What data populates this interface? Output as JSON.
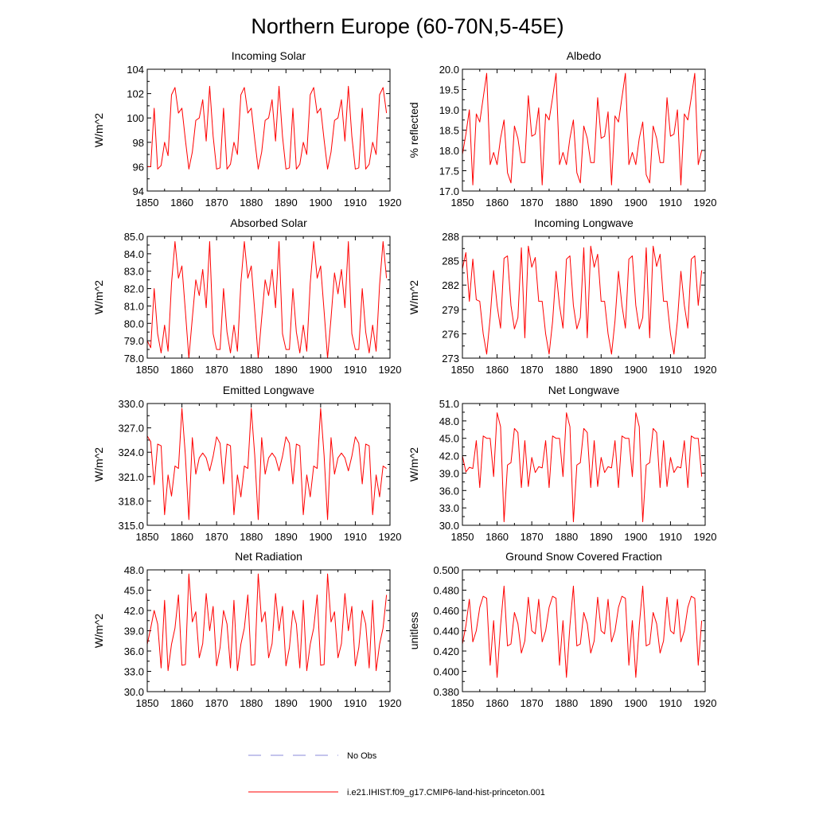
{
  "title": "Northern Europe (60-70N,5-45E)",
  "legend": {
    "no_obs_label": "No Obs",
    "no_obs_color": "#8a8ad8",
    "model_label": "i.e21.IHIST.f09_g17.CMIP6-land-hist-princeton.001",
    "model_color": "#ff0000"
  },
  "chart_data": [
    {
      "type": "line",
      "title": "Incoming Solar",
      "ylabel": "W/m^2",
      "xlim": [
        1850,
        1920
      ],
      "ylim": [
        94,
        104
      ],
      "xticks": [
        "1850",
        "1860",
        "1870",
        "1880",
        "1890",
        "1900",
        "1910",
        "1920"
      ],
      "yticks": [
        "94",
        "96",
        "98",
        "100",
        "102",
        "104"
      ],
      "x_start": 1850,
      "values": [
        96,
        96,
        100.8,
        95.8,
        96.1,
        98,
        96.9,
        101.9,
        102.5,
        100.4,
        100.8,
        98.2,
        95.8,
        97.2,
        99.8,
        100,
        101.5,
        98.1,
        102.6,
        98.5,
        95.8,
        95.9,
        100.8,
        95.8,
        96.2,
        98,
        97,
        101.9,
        102.5,
        100.4,
        100.8,
        98.2,
        95.8,
        97.2,
        99.8,
        100,
        101.5,
        98.1,
        102.6,
        98.5,
        95.8,
        95.9,
        100.8,
        95.8,
        96.2,
        98,
        97,
        101.9,
        102.5,
        100.4,
        100.8,
        98.2,
        95.8,
        97.2,
        99.8,
        100,
        101.5,
        98.1,
        102.6,
        98.5,
        95.8,
        95.9,
        100.8,
        95.8,
        96.2,
        98,
        97,
        101.9,
        102.5,
        100.4
      ]
    },
    {
      "type": "line",
      "title": "Albedo",
      "ylabel": "% reflected",
      "xlim": [
        1850,
        1920
      ],
      "ylim": [
        17.0,
        20.0
      ],
      "xticks": [
        "1850",
        "1860",
        "1870",
        "1880",
        "1890",
        "1900",
        "1910",
        "1920"
      ],
      "yticks": [
        "17.0",
        "17.5",
        "18.0",
        "18.5",
        "19.0",
        "19.5",
        "20.0"
      ],
      "x_start": 1850,
      "values": [
        17.9,
        18.4,
        19.0,
        17.15,
        18.9,
        18.7,
        19.3,
        19.9,
        17.65,
        17.95,
        17.65,
        18.3,
        18.75,
        17.45,
        17.2,
        18.6,
        18.3,
        17.7,
        17.7,
        19.35,
        18.35,
        18.4,
        19.05,
        17.15,
        18.9,
        18.75,
        19.3,
        19.9,
        17.65,
        17.95,
        17.65,
        18.3,
        18.75,
        17.45,
        17.2,
        18.6,
        18.3,
        17.7,
        17.7,
        19.3,
        18.3,
        18.35,
        18.95,
        17.15,
        18.85,
        18.7,
        19.3,
        19.9,
        17.65,
        17.95,
        17.65,
        18.3,
        18.7,
        17.4,
        17.2,
        18.6,
        18.3,
        17.7,
        17.7,
        19.3,
        18.35,
        18.4,
        19.0,
        17.15,
        18.9,
        18.75,
        19.3,
        19.9,
        17.65,
        18.0
      ]
    },
    {
      "type": "line",
      "title": "Absorbed Solar",
      "ylabel": "W/m^2",
      "xlim": [
        1850,
        1920
      ],
      "ylim": [
        78.0,
        85.0
      ],
      "xticks": [
        "1850",
        "1860",
        "1870",
        "1880",
        "1890",
        "1900",
        "1910",
        "1920"
      ],
      "yticks": [
        "78.0",
        "79.0",
        "80.0",
        "81.0",
        "82.0",
        "83.0",
        "84.0",
        "85.0"
      ],
      "x_start": 1850,
      "values": [
        79.0,
        78.6,
        82.0,
        79.4,
        78.3,
        79.9,
        78.4,
        82.3,
        84.7,
        82.6,
        83.3,
        80.7,
        78.0,
        80.3,
        82.5,
        81.6,
        83.1,
        80.9,
        84.7,
        79.4,
        78.5,
        78.5,
        82.0,
        79.5,
        78.3,
        79.9,
        78.4,
        82.3,
        84.7,
        82.6,
        83.3,
        80.7,
        78.0,
        80.3,
        82.5,
        81.6,
        83.1,
        80.9,
        84.7,
        79.4,
        78.5,
        78.5,
        82.0,
        79.5,
        78.3,
        79.9,
        78.4,
        82.3,
        84.7,
        82.6,
        83.3,
        80.7,
        78.0,
        80.3,
        82.9,
        81.7,
        83.1,
        80.9,
        84.7,
        79.4,
        78.5,
        78.5,
        82.0,
        79.5,
        78.3,
        79.9,
        78.4,
        82.2,
        84.7,
        82.6
      ]
    },
    {
      "type": "line",
      "title": "Incoming Longwave",
      "ylabel": "W/m^2",
      "xlim": [
        1850,
        1920
      ],
      "ylim": [
        273,
        288
      ],
      "xticks": [
        "1850",
        "1860",
        "1870",
        "1880",
        "1890",
        "1900",
        "1910",
        "1920"
      ],
      "yticks": [
        "273",
        "276",
        "279",
        "282",
        "285",
        "288"
      ],
      "x_start": 1850,
      "values": [
        284.0,
        286.0,
        280.0,
        285.2,
        280.2,
        280.0,
        276.0,
        273.5,
        278.0,
        283.8,
        279.5,
        276.7,
        285.3,
        285.6,
        279.5,
        276.6,
        278.0,
        286.6,
        275.5,
        286.8,
        284.2,
        285.4,
        280.0,
        280.0,
        276.0,
        273.5,
        277.5,
        283.7,
        279.5,
        276.7,
        285.2,
        285.6,
        279.5,
        276.6,
        278.0,
        286.6,
        275.5,
        286.8,
        284.2,
        285.8,
        280.0,
        280.0,
        276.0,
        273.5,
        277.6,
        283.7,
        279.5,
        276.7,
        285.2,
        285.6,
        279.5,
        276.6,
        278.0,
        286.6,
        275.5,
        286.8,
        284.3,
        285.8,
        280.0,
        280.0,
        276.0,
        273.5,
        277.6,
        283.7,
        279.5,
        276.7,
        285.2,
        285.6,
        279.5,
        283.8
      ]
    },
    {
      "type": "line",
      "title": "Emitted Longwave",
      "ylabel": "W/m^2",
      "xlim": [
        1850,
        1920
      ],
      "ylim": [
        315.0,
        330.0
      ],
      "xticks": [
        "1850",
        "1860",
        "1870",
        "1880",
        "1890",
        "1900",
        "1910",
        "1920"
      ],
      "yticks": [
        "315.0",
        "318.0",
        "321.0",
        "324.0",
        "327.0",
        "330.0"
      ],
      "x_start": 1850,
      "values": [
        326.0,
        325.3,
        320.0,
        325.0,
        324.8,
        316.3,
        321.2,
        318.6,
        322.3,
        322.0,
        329.4,
        323.6,
        315.7,
        325.8,
        321.3,
        323.3,
        323.9,
        323.3,
        321.7,
        323.5,
        325.9,
        325.1,
        320.1,
        325.0,
        324.8,
        316.3,
        321.2,
        318.5,
        322.3,
        322.0,
        329.4,
        323.6,
        315.7,
        325.8,
        321.3,
        323.3,
        323.9,
        323.3,
        321.7,
        323.5,
        325.9,
        325.1,
        320.1,
        325.0,
        324.8,
        316.3,
        321.2,
        318.5,
        322.3,
        322.0,
        329.4,
        323.6,
        315.7,
        325.8,
        321.3,
        323.3,
        323.9,
        323.3,
        321.7,
        323.5,
        325.9,
        325.1,
        320.1,
        325.0,
        324.8,
        316.3,
        321.2,
        318.5,
        322.3,
        322.0
      ]
    },
    {
      "type": "line",
      "title": "Net Longwave",
      "ylabel": "W/m^2",
      "xlim": [
        1850,
        1920
      ],
      "ylim": [
        30.0,
        51.0
      ],
      "xticks": [
        "1850",
        "1860",
        "1870",
        "1880",
        "1890",
        "1900",
        "1910",
        "1920"
      ],
      "yticks": [
        "30.0",
        "33.0",
        "36.0",
        "39.0",
        "42.0",
        "45.0",
        "48.0",
        "51.0"
      ],
      "x_start": 1850,
      "values": [
        42.0,
        39.2,
        40.0,
        39.8,
        44.6,
        36.5,
        45.4,
        45.0,
        45.0,
        38.4,
        49.4,
        47.0,
        30.6,
        40.4,
        40.8,
        46.7,
        46.0,
        36.5,
        44.6,
        36.7,
        41.7,
        39.1,
        40.1,
        39.9,
        44.6,
        36.5,
        45.4,
        45.0,
        45.0,
        38.4,
        49.4,
        47.0,
        30.6,
        40.4,
        40.8,
        46.7,
        46.0,
        36.5,
        44.6,
        36.7,
        41.7,
        39.1,
        40.1,
        39.9,
        44.6,
        36.5,
        45.4,
        45.0,
        45.0,
        38.4,
        49.4,
        47.0,
        30.6,
        40.4,
        40.8,
        46.7,
        46.0,
        36.5,
        44.6,
        36.7,
        41.7,
        39.1,
        40.1,
        39.9,
        44.6,
        36.5,
        45.4,
        45.0,
        45.0,
        38.4
      ]
    },
    {
      "type": "line",
      "title": "Net Radiation",
      "ylabel": "W/m^2",
      "xlim": [
        1850,
        1920
      ],
      "ylim": [
        30.0,
        48.0
      ],
      "xticks": [
        "1850",
        "1860",
        "1870",
        "1880",
        "1890",
        "1900",
        "1910",
        "1920"
      ],
      "yticks": [
        "30.0",
        "33.0",
        "36.0",
        "39.0",
        "42.0",
        "45.0",
        "48.0"
      ],
      "x_start": 1850,
      "values": [
        37.0,
        39.4,
        42.0,
        40.0,
        33.5,
        43.5,
        33.1,
        37.0,
        39.4,
        44.3,
        33.9,
        34.0,
        47.4,
        40.3,
        41.8,
        35.0,
        37.1,
        44.5,
        39.0,
        42.6,
        33.8,
        36.5,
        42.0,
        40.0,
        33.5,
        43.5,
        33.1,
        37.0,
        39.4,
        44.3,
        33.9,
        34.0,
        47.4,
        40.3,
        41.8,
        35.0,
        37.1,
        44.5,
        39.0,
        42.6,
        33.8,
        36.5,
        42.0,
        40.0,
        33.5,
        43.5,
        33.1,
        37.0,
        39.4,
        44.3,
        33.9,
        34.0,
        47.4,
        40.3,
        41.8,
        35.0,
        37.1,
        44.5,
        39.0,
        42.6,
        33.8,
        36.5,
        42.0,
        40.0,
        33.5,
        43.5,
        33.1,
        37.0,
        39.4,
        44.3
      ]
    },
    {
      "type": "line",
      "title": "Ground Snow Covered Fraction",
      "ylabel": "unitless",
      "xlim": [
        1850,
        1920
      ],
      "ylim": [
        0.38,
        0.5
      ],
      "xticks": [
        "1850",
        "1860",
        "1870",
        "1880",
        "1890",
        "1900",
        "1910",
        "1920"
      ],
      "yticks": [
        "0.380",
        "0.400",
        "0.420",
        "0.440",
        "0.460",
        "0.480",
        "0.500"
      ],
      "x_start": 1850,
      "values": [
        0.427,
        0.445,
        0.471,
        0.429,
        0.44,
        0.463,
        0.474,
        0.472,
        0.406,
        0.45,
        0.394,
        0.445,
        0.484,
        0.425,
        0.427,
        0.458,
        0.447,
        0.418,
        0.43,
        0.473,
        0.44,
        0.437,
        0.471,
        0.429,
        0.44,
        0.463,
        0.474,
        0.472,
        0.406,
        0.45,
        0.394,
        0.445,
        0.484,
        0.425,
        0.427,
        0.458,
        0.447,
        0.418,
        0.43,
        0.473,
        0.44,
        0.437,
        0.471,
        0.429,
        0.44,
        0.463,
        0.474,
        0.472,
        0.406,
        0.45,
        0.394,
        0.445,
        0.484,
        0.425,
        0.427,
        0.458,
        0.447,
        0.418,
        0.43,
        0.473,
        0.44,
        0.437,
        0.471,
        0.429,
        0.44,
        0.463,
        0.474,
        0.472,
        0.406,
        0.45
      ]
    }
  ]
}
